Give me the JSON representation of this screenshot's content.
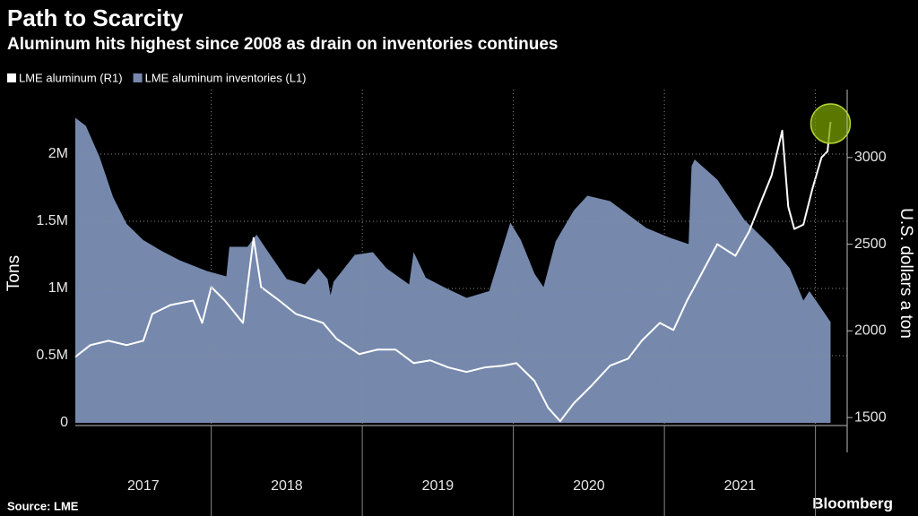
{
  "chart_data": {
    "type": "area-line",
    "title": "Path to Scarcity",
    "subtitle": "Aluminum hits highest since 2008 as drain on inventories continues",
    "ylabel": "Tons",
    "y2label": "U.S. dollars a ton",
    "source": "Source: LME",
    "brand": "Bloomberg",
    "xlim": [
      2017.1,
      2022.21
    ],
    "xticks": [
      {
        "value": 2017,
        "label": "2017"
      },
      {
        "value": 2018,
        "label": "2018"
      },
      {
        "value": 2019,
        "label": "2019"
      },
      {
        "value": 2020,
        "label": "2020"
      },
      {
        "value": 2021,
        "label": "2021"
      }
    ],
    "ylim": [
      -20000,
      2480000
    ],
    "yticks": [
      {
        "value": 0,
        "label": "0"
      },
      {
        "value": 500000,
        "label": "0.5M"
      },
      {
        "value": 1000000,
        "label": "1M"
      },
      {
        "value": 1500000,
        "label": "1.5M"
      },
      {
        "value": 2000000,
        "label": "2M"
      }
    ],
    "y2lim": [
      1454,
      3392
    ],
    "y2ticks": [
      1500,
      2000,
      2500,
      3000
    ],
    "grid": true,
    "series": [
      {
        "name": "LME aluminum (R1)",
        "color": "#ffffff",
        "axis": "y2",
        "kind": "line",
        "x": [
          2017.1,
          2017.2,
          2017.32,
          2017.44,
          2017.55,
          2017.61,
          2017.73,
          2017.88,
          2017.94,
          2018.0,
          2018.09,
          2018.21,
          2018.28,
          2018.33,
          2018.45,
          2018.56,
          2018.74,
          2018.83,
          2018.98,
          2019.1,
          2019.22,
          2019.34,
          2019.45,
          2019.57,
          2019.69,
          2019.81,
          2019.93,
          2020.02,
          2020.14,
          2020.23,
          2020.31,
          2020.4,
          2020.52,
          2020.64,
          2020.76,
          2020.85,
          2020.97,
          2021.06,
          2021.15,
          2021.23,
          2021.35,
          2021.47,
          2021.56,
          2021.65,
          2021.71,
          2021.78,
          2021.82,
          2021.86,
          2021.92,
          2021.98,
          2022.04,
          2022.08,
          2022.1
        ],
        "values": [
          1850,
          1918,
          1943,
          1918,
          1943,
          2098,
          2149,
          2175,
          2046,
          2253,
          2175,
          2046,
          2536,
          2253,
          2175,
          2098,
          2046,
          1954,
          1866,
          1892,
          1892,
          1814,
          1830,
          1789,
          1763,
          1789,
          1799,
          1814,
          1711,
          1557,
          1479,
          1582,
          1686,
          1799,
          1840,
          1943,
          2046,
          2005,
          2175,
          2304,
          2500,
          2433,
          2572,
          2768,
          2897,
          3155,
          2716,
          2588,
          2613,
          2820,
          3000,
          3036,
          3206
        ]
      },
      {
        "name": "LME aluminum inventories (L1)",
        "color": "#7689ad",
        "axis": "y",
        "kind": "area",
        "x": [
          2017.1,
          2017.17,
          2017.26,
          2017.35,
          2017.44,
          2017.55,
          2017.67,
          2017.79,
          2017.97,
          2018.1,
          2018.12,
          2018.24,
          2018.3,
          2018.39,
          2018.5,
          2018.62,
          2018.71,
          2018.77,
          2018.79,
          2018.81,
          2018.95,
          2019.07,
          2019.16,
          2019.31,
          2019.34,
          2019.42,
          2019.54,
          2019.69,
          2019.84,
          2019.98,
          2020.05,
          2020.14,
          2020.2,
          2020.28,
          2020.4,
          2020.49,
          2020.64,
          2020.88,
          2021.03,
          2021.16,
          2021.18,
          2021.2,
          2021.35,
          2021.53,
          2021.71,
          2021.83,
          2021.92,
          2021.96,
          2022.04,
          2022.1
        ],
        "values": [
          2270000,
          2210000,
          1980000,
          1680000,
          1480000,
          1360000,
          1280000,
          1210000,
          1130000,
          1090000,
          1310000,
          1310000,
          1400000,
          1250000,
          1070000,
          1030000,
          1150000,
          1070000,
          950000,
          1050000,
          1250000,
          1270000,
          1150000,
          1030000,
          1270000,
          1080000,
          1010000,
          930000,
          980000,
          1490000,
          1360000,
          1110000,
          1010000,
          1350000,
          1580000,
          1690000,
          1650000,
          1450000,
          1380000,
          1330000,
          1910000,
          1960000,
          1810000,
          1510000,
          1310000,
          1150000,
          910000,
          980000,
          850000,
          750000
        ]
      }
    ]
  }
}
